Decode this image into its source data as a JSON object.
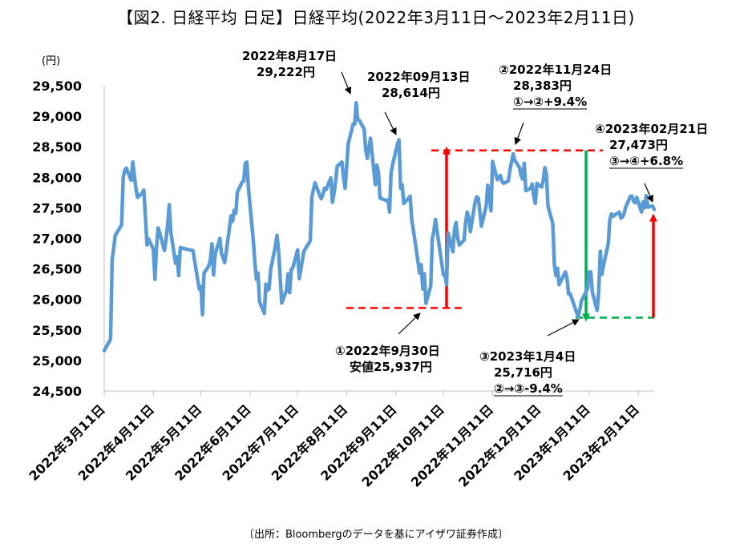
{
  "title": "【図2. 日経平均 日足】日経平均(2022年3月11日～2023年2月11日)",
  "source": "〔出所：Bloombergのデータを基にアイザワ証券作成〕",
  "chart_data": {
    "type": "line",
    "ylabel_unit": "(円)",
    "ylim": [
      24500,
      29500
    ],
    "yticks": [
      "24,500",
      "25,000",
      "25,500",
      "26,000",
      "26,500",
      "27,000",
      "27,500",
      "28,000",
      "28,500",
      "29,000",
      "29,500"
    ],
    "ytick_values": [
      24500,
      25000,
      25500,
      26000,
      26500,
      27000,
      27500,
      28000,
      28500,
      29000,
      29500
    ],
    "xticks": [
      "2022年3月11日",
      "2022年4月11日",
      "2022年5月11日",
      "2022年6月11日",
      "2022年7月11日",
      "2022年8月11日",
      "2022年9月11日",
      "2022年10月11日",
      "2022年11月11日",
      "2022年12月11日",
      "2023年1月11日",
      "2023年2月11日"
    ],
    "xtick_dates": [
      "2022-03-11",
      "2022-04-11",
      "2022-05-11",
      "2022-06-11",
      "2022-07-11",
      "2022-08-11",
      "2022-09-11",
      "2022-10-11",
      "2022-11-11",
      "2022-12-11",
      "2023-01-11",
      "2023-02-11"
    ],
    "x_end_date": "2023-02-21",
    "line_color": "#5b9bd5",
    "series": [
      {
        "values": [
          [
            "2022-03-11",
            25160
          ],
          [
            "2022-03-14",
            25300
          ],
          [
            "2022-03-15",
            25350
          ],
          [
            "2022-03-16",
            26650
          ],
          [
            "2022-03-17",
            26850
          ],
          [
            "2022-03-18",
            27050
          ],
          [
            "2022-03-22",
            27220
          ],
          [
            "2022-03-23",
            28000
          ],
          [
            "2022-03-24",
            28120
          ],
          [
            "2022-03-25",
            28150
          ],
          [
            "2022-03-28",
            27950
          ],
          [
            "2022-03-29",
            28250
          ],
          [
            "2022-03-30",
            28030
          ],
          [
            "2022-03-31",
            27820
          ],
          [
            "2022-04-01",
            27670
          ],
          [
            "2022-04-04",
            27740
          ],
          [
            "2022-04-05",
            27790
          ],
          [
            "2022-04-06",
            27350
          ],
          [
            "2022-04-07",
            26890
          ],
          [
            "2022-04-08",
            26990
          ],
          [
            "2022-04-11",
            26820
          ],
          [
            "2022-04-12",
            26330
          ],
          [
            "2022-04-13",
            26850
          ],
          [
            "2022-04-14",
            27170
          ],
          [
            "2022-04-15",
            27090
          ],
          [
            "2022-04-18",
            26800
          ],
          [
            "2022-04-19",
            26980
          ],
          [
            "2022-04-20",
            27220
          ],
          [
            "2022-04-21",
            27550
          ],
          [
            "2022-04-22",
            27110
          ],
          [
            "2022-04-25",
            26590
          ],
          [
            "2022-04-26",
            26700
          ],
          [
            "2022-04-27",
            26390
          ],
          [
            "2022-04-28",
            26850
          ],
          [
            "2022-05-02",
            26820
          ],
          [
            "2022-05-06",
            26800
          ],
          [
            "2022-05-09",
            26320
          ],
          [
            "2022-05-10",
            26170
          ],
          [
            "2022-05-11",
            26210
          ],
          [
            "2022-05-12",
            25750
          ],
          [
            "2022-05-13",
            26430
          ],
          [
            "2022-05-16",
            26550
          ],
          [
            "2022-05-17",
            26660
          ],
          [
            "2022-05-18",
            26910
          ],
          [
            "2022-05-19",
            26400
          ],
          [
            "2022-05-20",
            26740
          ],
          [
            "2022-05-23",
            27000
          ],
          [
            "2022-05-24",
            26750
          ],
          [
            "2022-05-25",
            26680
          ],
          [
            "2022-05-26",
            26600
          ],
          [
            "2022-05-27",
            26780
          ],
          [
            "2022-05-30",
            27370
          ],
          [
            "2022-05-31",
            27280
          ],
          [
            "2022-06-01",
            27460
          ],
          [
            "2022-06-02",
            27410
          ],
          [
            "2022-06-03",
            27760
          ],
          [
            "2022-06-06",
            27920
          ],
          [
            "2022-06-07",
            27940
          ],
          [
            "2022-06-08",
            28230
          ],
          [
            "2022-06-09",
            28250
          ],
          [
            "2022-06-10",
            27820
          ],
          [
            "2022-06-13",
            26990
          ],
          [
            "2022-06-14",
            26630
          ],
          [
            "2022-06-15",
            26330
          ],
          [
            "2022-06-16",
            26430
          ],
          [
            "2022-06-17",
            25960
          ],
          [
            "2022-06-20",
            25770
          ],
          [
            "2022-06-21",
            26250
          ],
          [
            "2022-06-22",
            26150
          ],
          [
            "2022-06-23",
            26170
          ],
          [
            "2022-06-24",
            26490
          ],
          [
            "2022-06-27",
            26870
          ],
          [
            "2022-06-28",
            27050
          ],
          [
            "2022-06-29",
            26800
          ],
          [
            "2022-06-30",
            26390
          ],
          [
            "2022-07-01",
            25940
          ],
          [
            "2022-07-04",
            26150
          ],
          [
            "2022-07-05",
            26420
          ],
          [
            "2022-07-06",
            26110
          ],
          [
            "2022-07-07",
            26490
          ],
          [
            "2022-07-08",
            26520
          ],
          [
            "2022-07-11",
            26810
          ],
          [
            "2022-07-12",
            26340
          ],
          [
            "2022-07-13",
            26480
          ],
          [
            "2022-07-14",
            26640
          ],
          [
            "2022-07-15",
            26790
          ],
          [
            "2022-07-19",
            26960
          ],
          [
            "2022-07-20",
            27680
          ],
          [
            "2022-07-21",
            27800
          ],
          [
            "2022-07-22",
            27910
          ],
          [
            "2022-07-25",
            27700
          ],
          [
            "2022-07-26",
            27650
          ],
          [
            "2022-07-27",
            27720
          ],
          [
            "2022-07-28",
            27820
          ],
          [
            "2022-07-29",
            27800
          ],
          [
            "2022-08-01",
            27990
          ],
          [
            "2022-08-02",
            27590
          ],
          [
            "2022-08-03",
            27740
          ],
          [
            "2022-08-04",
            27930
          ],
          [
            "2022-08-05",
            28180
          ],
          [
            "2022-08-08",
            28250
          ],
          [
            "2022-08-09",
            27990
          ],
          [
            "2022-08-10",
            27820
          ],
          [
            "2022-08-12",
            28550
          ],
          [
            "2022-08-15",
            28870
          ],
          [
            "2022-08-16",
            28870
          ],
          [
            "2022-08-17",
            29222
          ],
          [
            "2022-08-18",
            28940
          ],
          [
            "2022-08-19",
            28930
          ],
          [
            "2022-08-22",
            28790
          ],
          [
            "2022-08-23",
            28450
          ],
          [
            "2022-08-24",
            28310
          ],
          [
            "2022-08-25",
            28480
          ],
          [
            "2022-08-26",
            28640
          ],
          [
            "2022-08-29",
            27880
          ],
          [
            "2022-08-30",
            28200
          ],
          [
            "2022-08-31",
            28090
          ],
          [
            "2022-09-01",
            27660
          ],
          [
            "2022-09-02",
            27650
          ],
          [
            "2022-09-05",
            27620
          ],
          [
            "2022-09-06",
            27630
          ],
          [
            "2022-09-07",
            27430
          ],
          [
            "2022-09-08",
            28070
          ],
          [
            "2022-09-09",
            28210
          ],
          [
            "2022-09-12",
            28540
          ],
          [
            "2022-09-13",
            28614
          ],
          [
            "2022-09-14",
            27820
          ],
          [
            "2022-09-15",
            27880
          ],
          [
            "2022-09-16",
            27570
          ],
          [
            "2022-09-20",
            27690
          ],
          [
            "2022-09-21",
            27310
          ],
          [
            "2022-09-22",
            27150
          ],
          [
            "2022-09-26",
            26430
          ],
          [
            "2022-09-27",
            26570
          ],
          [
            "2022-09-28",
            26170
          ],
          [
            "2022-09-29",
            26420
          ],
          [
            "2022-09-30",
            25937
          ],
          [
            "2022-10-03",
            26220
          ],
          [
            "2022-10-04",
            26990
          ],
          [
            "2022-10-05",
            27120
          ],
          [
            "2022-10-06",
            27310
          ],
          [
            "2022-10-07",
            27120
          ],
          [
            "2022-10-11",
            26400
          ],
          [
            "2022-10-12",
            26400
          ],
          [
            "2022-10-13",
            26240
          ],
          [
            "2022-10-14",
            27090
          ],
          [
            "2022-10-17",
            26780
          ],
          [
            "2022-10-18",
            27150
          ],
          [
            "2022-10-19",
            27260
          ],
          [
            "2022-10-20",
            27010
          ],
          [
            "2022-10-21",
            26890
          ],
          [
            "2022-10-24",
            26970
          ],
          [
            "2022-10-25",
            27250
          ],
          [
            "2022-10-26",
            27430
          ],
          [
            "2022-10-27",
            27350
          ],
          [
            "2022-10-28",
            27110
          ],
          [
            "2022-10-31",
            27590
          ],
          [
            "2022-11-01",
            27680
          ],
          [
            "2022-11-02",
            27660
          ],
          [
            "2022-11-04",
            27200
          ],
          [
            "2022-11-07",
            27530
          ],
          [
            "2022-11-08",
            27870
          ],
          [
            "2022-11-09",
            27710
          ],
          [
            "2022-11-10",
            27450
          ],
          [
            "2022-11-11",
            28260
          ],
          [
            "2022-11-14",
            27960
          ],
          [
            "2022-11-15",
            27990
          ],
          [
            "2022-11-16",
            28030
          ],
          [
            "2022-11-17",
            27930
          ],
          [
            "2022-11-18",
            27900
          ],
          [
            "2022-11-21",
            27940
          ],
          [
            "2022-11-22",
            28120
          ],
          [
            "2022-11-24",
            28383
          ],
          [
            "2022-11-25",
            28280
          ],
          [
            "2022-11-28",
            28160
          ],
          [
            "2022-11-29",
            28030
          ],
          [
            "2022-11-30",
            27970
          ],
          [
            "2022-12-01",
            28230
          ],
          [
            "2022-12-02",
            27780
          ],
          [
            "2022-12-05",
            27820
          ],
          [
            "2022-12-06",
            27890
          ],
          [
            "2022-12-07",
            27690
          ],
          [
            "2022-12-08",
            27570
          ],
          [
            "2022-12-09",
            27900
          ],
          [
            "2022-12-12",
            27840
          ],
          [
            "2022-12-13",
            27950
          ],
          [
            "2022-12-14",
            28160
          ],
          [
            "2022-12-15",
            28050
          ],
          [
            "2022-12-16",
            27530
          ],
          [
            "2022-12-19",
            27240
          ],
          [
            "2022-12-20",
            26570
          ],
          [
            "2022-12-21",
            26390
          ],
          [
            "2022-12-22",
            26510
          ],
          [
            "2022-12-23",
            26240
          ],
          [
            "2022-12-26",
            26400
          ],
          [
            "2022-12-27",
            26450
          ],
          [
            "2022-12-28",
            26340
          ],
          [
            "2022-12-29",
            26090
          ],
          [
            "2022-12-30",
            26090
          ],
          [
            "2023-01-04",
            25716
          ],
          [
            "2023-01-05",
            25820
          ],
          [
            "2023-01-06",
            25970
          ],
          [
            "2023-01-10",
            26180
          ],
          [
            "2023-01-11",
            26450
          ],
          [
            "2023-01-12",
            26450
          ],
          [
            "2023-01-13",
            26120
          ],
          [
            "2023-01-16",
            25820
          ],
          [
            "2023-01-17",
            26140
          ],
          [
            "2023-01-18",
            26790
          ],
          [
            "2023-01-19",
            26410
          ],
          [
            "2023-01-20",
            26550
          ],
          [
            "2023-01-23",
            26910
          ],
          [
            "2023-01-24",
            27300
          ],
          [
            "2023-01-25",
            27400
          ],
          [
            "2023-01-26",
            27360
          ],
          [
            "2023-01-27",
            27380
          ],
          [
            "2023-01-30",
            27430
          ],
          [
            "2023-01-31",
            27330
          ],
          [
            "2023-02-01",
            27350
          ],
          [
            "2023-02-02",
            27400
          ],
          [
            "2023-02-03",
            27510
          ],
          [
            "2023-02-06",
            27690
          ],
          [
            "2023-02-07",
            27690
          ],
          [
            "2023-02-08",
            27610
          ],
          [
            "2023-02-09",
            27580
          ],
          [
            "2023-02-10",
            27670
          ],
          [
            "2023-02-13",
            27430
          ],
          [
            "2023-02-14",
            27600
          ],
          [
            "2023-02-15",
            27500
          ],
          [
            "2023-02-16",
            27700
          ],
          [
            "2023-02-17",
            27510
          ],
          [
            "2023-02-20",
            27530
          ],
          [
            "2023-02-21",
            27473
          ]
        ]
      }
    ],
    "annotations": [
      {
        "lines": [
          "2022年8月17日",
          "29,222円"
        ]
      },
      {
        "lines": [
          "2022年09月13日",
          "28,614円"
        ]
      },
      {
        "lines": [
          "②2022年11月24日",
          "28,383円",
          "①→②+9.4%"
        ]
      },
      {
        "lines": [
          "④2023年02月21日",
          "27,473円",
          "③→④+6.8%"
        ]
      },
      {
        "lines": [
          "①2022年9月30日",
          "安値25,937円"
        ]
      },
      {
        "lines": [
          "③2023年1月4日",
          "25,716円",
          "②→③-9.4%"
        ]
      }
    ],
    "reference_lines": [
      {
        "label": "①安値",
        "value": 25860,
        "color": "#ff0000"
      },
      {
        "label": "②",
        "value": 28440,
        "color": "#ff0000"
      },
      {
        "label": "③",
        "value": 25700,
        "color": "#00b050"
      }
    ],
    "arrow_colors": {
      "up": "#ff0000",
      "down": "#00b050"
    }
  }
}
